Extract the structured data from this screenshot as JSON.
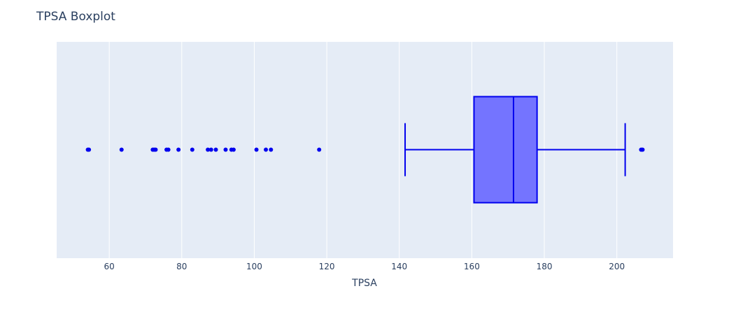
{
  "chart_data": {
    "type": "box",
    "title": "TPSA Boxplot",
    "xlabel": "TPSA",
    "ylabel": "",
    "xlim": [
      45.5,
      215.5
    ],
    "xticks": [
      60,
      80,
      100,
      120,
      140,
      160,
      180,
      200
    ],
    "grid": true,
    "legend": "none",
    "colors": {
      "box_line": "#0000ee",
      "box_fill": "#7474ff",
      "outlier": "#0000ee",
      "plot_bg": "#e5ecf6",
      "grid": "#ffffff"
    },
    "box": {
      "lower_fence": 141.6,
      "q1": 160.6,
      "median": 171.5,
      "q3": 178.0,
      "upper_fence": 202.3
    },
    "outliers": [
      54.1,
      54.4,
      63.4,
      72.0,
      72.4,
      72.8,
      75.8,
      76.3,
      79.1,
      82.9,
      87.2,
      88.1,
      89.4,
      92.1,
      93.7,
      94.3,
      100.6,
      103.2,
      104.6,
      117.9,
      206.7,
      207.1
    ]
  }
}
